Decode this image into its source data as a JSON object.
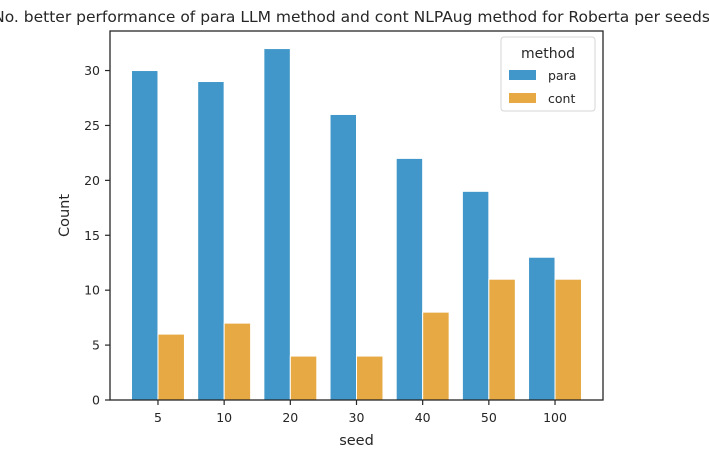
{
  "chart_data": {
    "type": "bar",
    "title": "No. better performance of para LLM method and cont NLPAug method for Roberta per seeds.",
    "xlabel": "seed",
    "ylabel": "Count",
    "categories": [
      "5",
      "10",
      "20",
      "30",
      "40",
      "50",
      "100"
    ],
    "series": [
      {
        "name": "para",
        "values": [
          30,
          29,
          32,
          26,
          22,
          19,
          13
        ],
        "color": "#4197c9"
      },
      {
        "name": "cont",
        "values": [
          6,
          7,
          4,
          4,
          8,
          11,
          11
        ],
        "color": "#e6a943"
      }
    ],
    "ylim": [
      0,
      33.6
    ],
    "yticks": [
      0,
      5,
      10,
      15,
      20,
      25,
      30
    ],
    "grid": false,
    "legend": {
      "title": "method",
      "placement": "top-right"
    }
  }
}
